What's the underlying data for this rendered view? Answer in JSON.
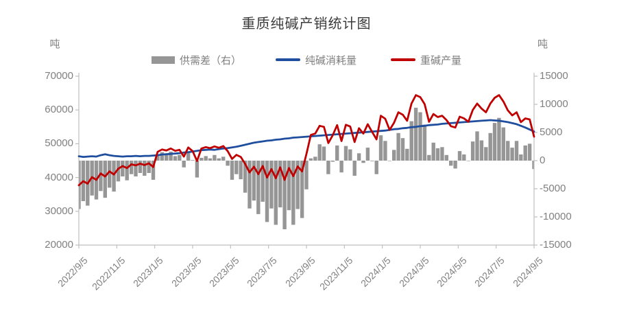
{
  "title": "重质纯碱产销统计图",
  "left_axis_unit": "吨",
  "right_axis_unit": "吨",
  "legend": [
    {
      "label": "供需差（右）",
      "type": "bar",
      "color": "#969696"
    },
    {
      "label": "纯碱消耗量",
      "type": "line",
      "color": "#1f4e9e"
    },
    {
      "label": "重碱产量",
      "type": "line",
      "color": "#c00000"
    }
  ],
  "colors": {
    "bar": "#969696",
    "consumption_line": "#1f4e9e",
    "production_line": "#c00000",
    "axis_line": "#bfbfbf",
    "axis_text": "#808080",
    "title_text": "#3b3b3b"
  },
  "chart_data": {
    "type": "bar+line combo",
    "title": "重质纯碱产销统计图",
    "x_tick_labels": [
      "2022/9/5",
      "2022/11/5",
      "2023/1/5",
      "2023/3/5",
      "2023/5/5",
      "2023/7/5",
      "2023/9/5",
      "2023/11/5",
      "2024/1/5",
      "2024/3/5",
      "2024/5/5",
      "2024/7/5",
      "2024/9/5"
    ],
    "x_points": 105,
    "x_note": "weekly data from 2022/9/5 to 2024/9/5",
    "left_axis": {
      "unit": "吨",
      "min": 20000,
      "max": 70000,
      "ticks": [
        70000,
        60000,
        50000,
        40000,
        30000,
        20000
      ]
    },
    "right_axis": {
      "unit": "吨",
      "min": -15000,
      "max": 15000,
      "ticks": [
        15000,
        10000,
        5000,
        0,
        -5000,
        -10000,
        -15000
      ]
    },
    "grid": false,
    "legend_position": "top",
    "series": [
      {
        "name": "供需差（右）",
        "type": "bar",
        "axis": "right",
        "color": "#969696",
        "values": [
          -8600,
          -7200,
          -8000,
          -6200,
          -6900,
          -5400,
          -6600,
          -4800,
          -5500,
          -3700,
          -2800,
          -3500,
          -2400,
          -2800,
          -2200,
          -2700,
          -2200,
          -3400,
          1000,
          1500,
          1100,
          1600,
          800,
          1000,
          -1200,
          1400,
          100,
          -3000,
          500,
          800,
          400,
          1000,
          400,
          700,
          -900,
          -3400,
          -2400,
          -3300,
          -5700,
          -8500,
          -7100,
          -9500,
          -7300,
          -10900,
          -8500,
          -11400,
          -8300,
          -12200,
          -8800,
          -11400,
          -8600,
          -10200,
          -5100,
          400,
          700,
          2900,
          2500,
          -2400,
          -200,
          2700,
          -2100,
          2600,
          2000,
          -2700,
          1300,
          -400,
          2300,
          -100,
          -2400,
          4500,
          3500,
          0,
          1900,
          4900,
          4000,
          2100,
          7000,
          9400,
          8600,
          6400,
          1000,
          3200,
          2200,
          2400,
          1000,
          -900,
          -1400,
          1700,
          1100,
          0,
          3400,
          5200,
          3600,
          2400,
          4900,
          6700,
          7600,
          5900,
          3500,
          2300,
          3500,
          1100,
          2700,
          3000,
          -1500
        ]
      },
      {
        "name": "纯碱消耗量",
        "type": "line",
        "axis": "left",
        "color": "#1f4e9e",
        "values": [
          46300,
          46100,
          46200,
          46300,
          46200,
          46600,
          46900,
          46600,
          46400,
          46300,
          46200,
          46300,
          46300,
          46400,
          46300,
          46400,
          46400,
          46500,
          46600,
          46800,
          46900,
          47000,
          47100,
          47200,
          47400,
          47500,
          47700,
          47900,
          48100,
          48200,
          48300,
          48200,
          48400,
          48600,
          48700,
          48900,
          49100,
          49400,
          49700,
          50000,
          50300,
          50500,
          50700,
          50900,
          51000,
          51200,
          51300,
          51500,
          51600,
          51800,
          51900,
          52000,
          52100,
          52200,
          52300,
          52400,
          52500,
          52600,
          52700,
          52800,
          52900,
          53000,
          53100,
          53200,
          53300,
          53400,
          53500,
          53600,
          53700,
          53800,
          53900,
          54100,
          54300,
          54400,
          54600,
          54700,
          54900,
          55000,
          55200,
          55300,
          55500,
          55600,
          55700,
          55900,
          56000,
          56100,
          56200,
          56300,
          56400,
          56500,
          56600,
          56700,
          56800,
          56900,
          57000,
          56900,
          56800,
          56600,
          56400,
          56100,
          55800,
          55300,
          54800,
          54200,
          53600
        ]
      },
      {
        "name": "重碱产量",
        "type": "line",
        "axis": "left",
        "color": "#c00000",
        "values": [
          37700,
          38900,
          38200,
          40100,
          39300,
          41200,
          40300,
          41800,
          40900,
          42600,
          43400,
          42800,
          43900,
          43600,
          44100,
          43700,
          44200,
          43100,
          47600,
          48300,
          48000,
          48600,
          47900,
          48200,
          46200,
          48900,
          47800,
          44900,
          48600,
          49000,
          48700,
          49200,
          48800,
          49300,
          47800,
          45500,
          46700,
          46100,
          44000,
          41500,
          43200,
          41000,
          43400,
          40000,
          42500,
          39800,
          43000,
          39300,
          42800,
          40400,
          43300,
          41800,
          47000,
          52600,
          53000,
          55300,
          55000,
          50200,
          52500,
          55500,
          50800,
          55600,
          55100,
          50500,
          54600,
          53000,
          55800,
          53500,
          51300,
          58300,
          57400,
          54100,
          56200,
          59300,
          58600,
          56800,
          61900,
          64400,
          63800,
          61700,
          56500,
          58800,
          57900,
          58300,
          57000,
          55200,
          54800,
          58000,
          57500,
          56500,
          60000,
          61900,
          60400,
          59300,
          61900,
          63600,
          64400,
          62500,
          59900,
          58400,
          59300,
          56400,
          57500,
          57200,
          52100
        ]
      }
    ]
  }
}
